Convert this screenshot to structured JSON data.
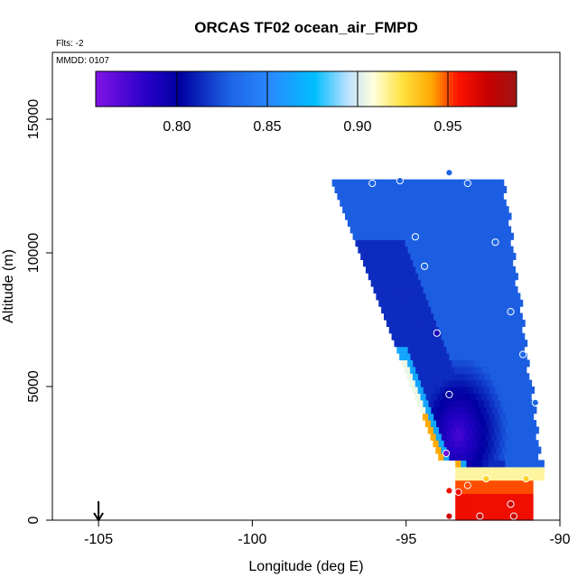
{
  "chart_data": {
    "type": "heatmap",
    "title": "ORCAS TF02 ocean_air_FMPD",
    "flights_label": "Flts: -2",
    "date_label": "MMDD: 0107",
    "xlabel": "Longitude (deg E)",
    "ylabel": "Altitude (m)",
    "xlim": [
      -106.5,
      -90
    ],
    "ylim": [
      0,
      17500
    ],
    "xticks": [
      -105,
      -100,
      -95,
      -90
    ],
    "xtick_labels": [
      "-105",
      "-100",
      "-95",
      "-90"
    ],
    "yticks": [
      0,
      5000,
      10000,
      15000
    ],
    "ytick_labels": [
      "0",
      "5000",
      "10000",
      "15000"
    ],
    "colorbar": {
      "range": [
        0.755,
        0.988
      ],
      "ticks": [
        0.8,
        0.85,
        0.9,
        0.95
      ],
      "tick_labels": [
        "0.80",
        "0.85",
        "0.90",
        "0.95"
      ]
    },
    "arrow_longitude": -105,
    "cell_size": {
      "longitude": 0.18,
      "altitude": 250
    },
    "field": {
      "lon_edges": {
        "top_altitude": 12600,
        "bottom_altitude": 2200,
        "left_at_top": -97.4,
        "left_at_bottom": -93.9,
        "right_at_top": -91.9,
        "right_at_bottom": -90.7
      },
      "core": {
        "lon": -93.3,
        "alt": 3200,
        "value": 0.772
      },
      "background_value": 0.828,
      "boundary_layer": {
        "lon_range": [
          -93.4,
          -91.0
        ],
        "alt_range": [
          0,
          1600
        ],
        "value": 0.955
      }
    },
    "points": [
      {
        "lon": -93.6,
        "alt": 13000,
        "value": 0.83
      },
      {
        "lon": -96.1,
        "alt": 12600,
        "value": 0.83
      },
      {
        "lon": -95.2,
        "alt": 12700,
        "value": 0.83
      },
      {
        "lon": -93.0,
        "alt": 12600,
        "value": 0.83
      },
      {
        "lon": -94.7,
        "alt": 10600,
        "value": 0.83
      },
      {
        "lon": -92.1,
        "alt": 10400,
        "value": 0.83
      },
      {
        "lon": -94.4,
        "alt": 9500,
        "value": 0.83
      },
      {
        "lon": -91.6,
        "alt": 7800,
        "value": 0.83
      },
      {
        "lon": -94.0,
        "alt": 7000,
        "value": 0.79
      },
      {
        "lon": -91.2,
        "alt": 6200,
        "value": 0.83
      },
      {
        "lon": -93.6,
        "alt": 4700,
        "value": 0.8
      },
      {
        "lon": -90.8,
        "alt": 4400,
        "value": 0.83
      },
      {
        "lon": -93.7,
        "alt": 2500,
        "value": 0.76
      },
      {
        "lon": -92.4,
        "alt": 1550,
        "value": 0.93
      },
      {
        "lon": -91.1,
        "alt": 1550,
        "value": 0.93
      },
      {
        "lon": -93.0,
        "alt": 1300,
        "value": 0.95
      },
      {
        "lon": -93.6,
        "alt": 1100,
        "value": 0.96
      },
      {
        "lon": -93.3,
        "alt": 1050,
        "value": 0.96
      },
      {
        "lon": -91.6,
        "alt": 600,
        "value": 0.97
      },
      {
        "lon": -93.6,
        "alt": 150,
        "value": 0.97
      },
      {
        "lon": -92.6,
        "alt": 150,
        "value": 0.97
      },
      {
        "lon": -91.5,
        "alt": 150,
        "value": 0.97
      }
    ]
  }
}
